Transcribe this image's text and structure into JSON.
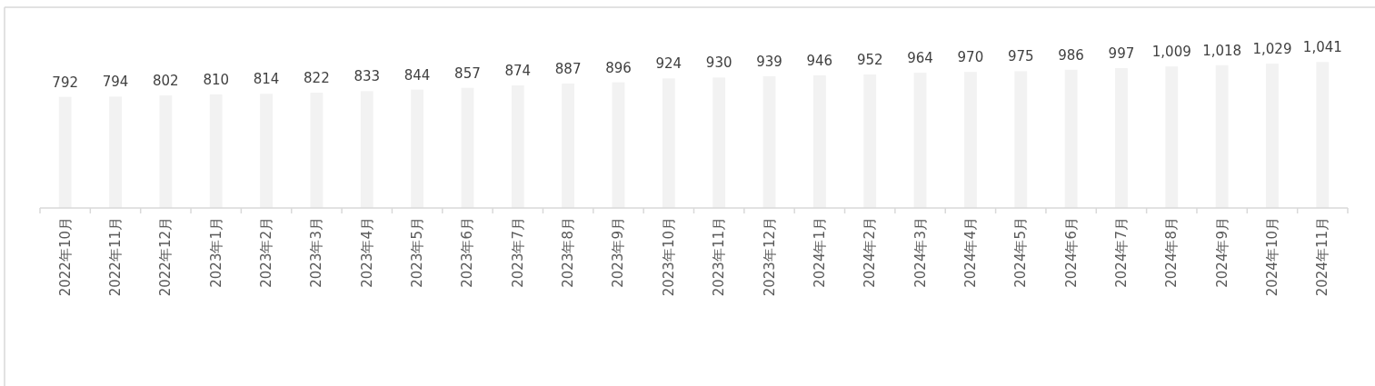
{
  "chart_data": {
    "type": "bar",
    "categories": [
      "2022年10月",
      "2022年11月",
      "2022年12月",
      "2023年1月",
      "2023年2月",
      "2023年3月",
      "2023年4月",
      "2023年5月",
      "2023年6月",
      "2023年7月",
      "2023年8月",
      "2023年9月",
      "2023年10月",
      "2023年11月",
      "2023年12月",
      "2024年1月",
      "2024年2月",
      "2024年3月",
      "2024年4月",
      "2024年5月",
      "2024年6月",
      "2024年7月",
      "2024年8月",
      "2024年9月",
      "2024年10月",
      "2024年11月"
    ],
    "values": [
      792,
      794,
      802,
      810,
      814,
      822,
      833,
      844,
      857,
      874,
      887,
      896,
      924,
      930,
      939,
      946,
      952,
      964,
      970,
      975,
      986,
      997,
      1009,
      1018,
      1029,
      1041
    ],
    "value_labels": [
      "792",
      "794",
      "802",
      "810",
      "814",
      "822",
      "833",
      "844",
      "857",
      "874",
      "887",
      "896",
      "924",
      "930",
      "939",
      "946",
      "952",
      "964",
      "970",
      "975",
      "986",
      "997",
      "1,009",
      "1,018",
      "1,029",
      "1,041"
    ],
    "color": "#f2f2f2"
  }
}
